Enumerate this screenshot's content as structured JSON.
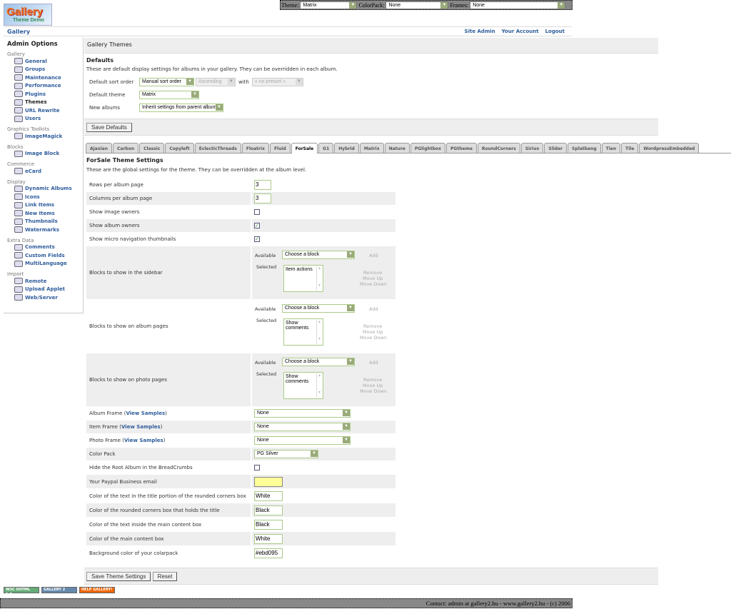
{
  "topbar": {
    "theme_label": "Theme:",
    "theme_value": "Matrix",
    "colorpack_label": "ColorPack:",
    "colorpack_value": "None",
    "frames_label": "Frames:",
    "frames_value": "None"
  },
  "logo": {
    "text": "Gallery",
    "subtext": "Theme Demo"
  },
  "breadcrumb": {
    "root": "Gallery"
  },
  "header_links": [
    "Site Admin",
    "Your Account",
    "Logout"
  ],
  "sidebar": {
    "title": "Admin Options",
    "sections": [
      {
        "label": "Gallery",
        "items": [
          "General",
          "Groups",
          "Maintenance",
          "Performance",
          "Plugins",
          "Themes",
          "URL Rewrite",
          "Users"
        ],
        "active": "Themes"
      },
      {
        "label": "Graphics Toolkits",
        "items": [
          "ImageMagick"
        ]
      },
      {
        "label": "Blocks",
        "items": [
          "Image Block"
        ]
      },
      {
        "label": "Commerce",
        "items": [
          "eCard"
        ]
      },
      {
        "label": "Display",
        "items": [
          "Dynamic Albums",
          "Icons",
          "Link Items",
          "New Items",
          "Thumbnails",
          "Watermarks"
        ]
      },
      {
        "label": "Extra Data",
        "items": [
          "Comments",
          "Custom Fields",
          "MultiLanguage"
        ]
      },
      {
        "label": "Import",
        "items": [
          "Remote",
          "Upload Applet",
          "Web/Server"
        ]
      }
    ]
  },
  "main": {
    "title": "Gallery Themes",
    "defaults": {
      "heading": "Defaults",
      "description": "These are default display settings for albums in your gallery. They can be overridden in each album.",
      "sort_label": "Default sort order",
      "sort_value": "Manual sort order",
      "direction_value": "Ascending",
      "with_label": "with",
      "presort_value": "« no presort »",
      "theme_label": "Default theme",
      "theme_value": "Matrix",
      "new_albums_label": "New albums",
      "new_albums_value": "Inherit settings from parent album",
      "save_button": "Save Defaults"
    },
    "tabs": [
      "Ajaxian",
      "Carbon",
      "Classic",
      "Copyleft",
      "EclecticThreads",
      "Floatrix",
      "Fluid",
      "ForSale",
      "G1",
      "Hybrid",
      "Matrix",
      "Nature",
      "PGlightbox",
      "PGtheme",
      "RoundCorners",
      "Siriux",
      "Slider",
      "Splatbang",
      "Tien",
      "Tile",
      "WordpressEmbedded"
    ],
    "active_tab": "ForSale",
    "theme_settings": {
      "heading": "ForSale Theme Settings",
      "description": "These are the global settings for the theme. They can be overridden at the album level.",
      "rows": [
        {
          "label": "Rows per album page",
          "type": "text",
          "value": "3"
        },
        {
          "label": "Columns per album page",
          "type": "text",
          "value": "3"
        },
        {
          "label": "Show image owners",
          "type": "checkbox",
          "checked": false
        },
        {
          "label": "Show album owners",
          "type": "checkbox",
          "checked": true
        },
        {
          "label": "Show micro navigation thumbnails",
          "type": "checkbox",
          "checked": true
        },
        {
          "label": "Blocks to show in the sidebar",
          "type": "blocks",
          "available": "Choose a block",
          "selected": "Item actions"
        },
        {
          "label": "Blocks to show on album pages",
          "type": "blocks",
          "available": "Choose a block",
          "selected": "Show comments"
        },
        {
          "label": "Blocks to show on photo pages",
          "type": "blocks",
          "available": "Choose a block",
          "selected": "Show comments"
        },
        {
          "label": "Album Frame",
          "link": "View Samples",
          "type": "select",
          "value": "None"
        },
        {
          "label": "Item Frame",
          "link": "View Samples",
          "type": "select",
          "value": "None"
        },
        {
          "label": "Photo Frame",
          "link": "View Samples",
          "type": "select",
          "value": "None"
        },
        {
          "label": "Color Pack",
          "type": "select-short",
          "value": "PG Silver"
        },
        {
          "label": "Hide the Root Album in the BreadCrumbs",
          "type": "checkbox",
          "checked": false
        },
        {
          "label": "Your Paypal Business email",
          "type": "text-yellow",
          "value": ""
        },
        {
          "label": "Color of the text in the title portion of the rounded corners box",
          "type": "text",
          "value": "White"
        },
        {
          "label": "Color of the rounded corners box that holds the title",
          "type": "text",
          "value": "Black"
        },
        {
          "label": "Color of the text inside the main content box",
          "type": "text",
          "value": "Black"
        },
        {
          "label": "Color of the main content box",
          "type": "text",
          "value": "White"
        },
        {
          "label": "Background color of your colarpack",
          "type": "text",
          "value": "#ebd095"
        }
      ],
      "block_labels": {
        "available": "Available",
        "selected": "Selected",
        "add": "Add",
        "remove": "Remove",
        "move_up": "Move Up",
        "move_down": "Move Down"
      },
      "save_button": "Save Theme Settings",
      "reset_button": "Reset"
    }
  },
  "badges": [
    "W3C XHTML 1.0",
    "GALLERY 2",
    "HELP GALLERY!"
  ],
  "footer": "Contact: admin at gallery2.hu - www.gallery2.hu - (c) 2006",
  "colors": {
    "link": "#2f5d9c",
    "alt_row": "#eeeeee",
    "select_border": "#aaca88",
    "paypal_bg": "#ffff99"
  }
}
